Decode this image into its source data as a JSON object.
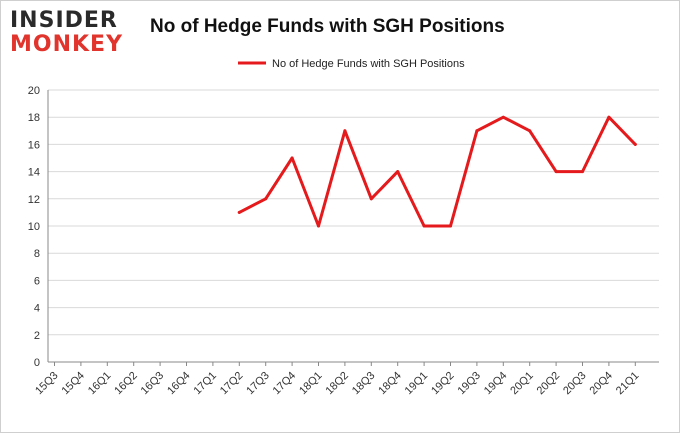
{
  "brand": {
    "line1": "INSIDER",
    "line2": "MONKEY"
  },
  "colors": {
    "series": "#e41a1c",
    "grid": "#d9d9d9",
    "axis": "#888888"
  },
  "chart_data": {
    "type": "line",
    "title": "No of Hedge Funds with SGH Positions",
    "legend_position": "top-center",
    "grid": true,
    "ylim": [
      0,
      20
    ],
    "yticks": [
      0,
      2,
      4,
      6,
      8,
      10,
      12,
      14,
      16,
      18,
      20
    ],
    "categories": [
      "15Q3",
      "15Q4",
      "16Q1",
      "16Q2",
      "16Q3",
      "16Q4",
      "17Q1",
      "17Q2",
      "17Q3",
      "17Q4",
      "18Q1",
      "18Q2",
      "18Q3",
      "18Q4",
      "19Q1",
      "19Q2",
      "19Q3",
      "19Q4",
      "20Q1",
      "20Q2",
      "20Q3",
      "20Q4",
      "21Q1"
    ],
    "series": [
      {
        "name": "No of Hedge Funds with SGH Positions",
        "values": [
          null,
          null,
          null,
          null,
          null,
          null,
          null,
          11,
          12,
          15,
          10,
          17,
          12,
          14,
          10,
          10,
          17,
          18,
          17,
          14,
          14,
          18,
          16
        ]
      }
    ]
  }
}
